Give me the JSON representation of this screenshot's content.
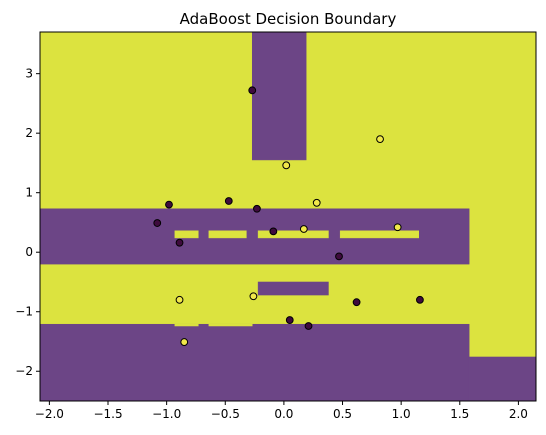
{
  "chart_data": {
    "type": "scatter",
    "title": "AdaBoost Decision Boundary",
    "xlabel": "",
    "ylabel": "",
    "xlim": [
      -2.08,
      2.15
    ],
    "ylim": [
      -2.5,
      3.7
    ],
    "x_ticks": [
      -2.0,
      -1.5,
      -1.0,
      -0.5,
      0.0,
      0.5,
      1.0,
      1.5,
      2.0
    ],
    "x_tick_labels": [
      "−2.0",
      "−1.5",
      "−1.0",
      "−0.5",
      "0.0",
      "0.5",
      "1.0",
      "1.5",
      "2.0"
    ],
    "y_ticks": [
      -2,
      -1,
      0,
      1,
      2,
      3
    ],
    "y_tick_labels": [
      "−2",
      "−1",
      "0",
      "1",
      "2",
      "3"
    ],
    "colors": {
      "class0": "#6c4586",
      "class1": "#dce33f",
      "class0_point": "#3e0b3d",
      "class1_point": "#f1e84a",
      "edge": "#000000"
    },
    "background_class": 1,
    "class0_regions": [
      {
        "x": [
          -0.27,
          0.19
        ],
        "y": [
          1.55,
          3.7
        ]
      },
      {
        "x": [
          -2.08,
          1.58
        ],
        "y": [
          -0.2,
          0.73
        ]
      },
      {
        "x": [
          -0.22,
          0.38
        ],
        "y": [
          -0.72,
          -0.5
        ]
      },
      {
        "x": [
          -2.08,
          1.58
        ],
        "y": [
          -2.5,
          -1.21
        ]
      },
      {
        "x": [
          1.58,
          2.15
        ],
        "y": [
          -2.5,
          -1.76
        ]
      }
    ],
    "class1_regions": [
      {
        "x": [
          -0.93,
          -0.73
        ],
        "y": [
          0.24,
          0.36
        ]
      },
      {
        "x": [
          -0.64,
          -0.32
        ],
        "y": [
          0.24,
          0.36
        ]
      },
      {
        "x": [
          -0.22,
          0.38
        ],
        "y": [
          0.24,
          0.36
        ]
      },
      {
        "x": [
          0.48,
          1.15
        ],
        "y": [
          0.24,
          0.36
        ]
      },
      {
        "x": [
          -0.93,
          -0.73
        ],
        "y": [
          -1.24,
          -1.21
        ]
      },
      {
        "x": [
          -0.64,
          -0.27
        ],
        "y": [
          -1.24,
          -1.21
        ]
      }
    ],
    "points": [
      {
        "x": -0.27,
        "y": 2.72,
        "label": 0
      },
      {
        "x": 0.82,
        "y": 1.9,
        "label": 1
      },
      {
        "x": 0.02,
        "y": 1.46,
        "label": 1
      },
      {
        "x": -0.47,
        "y": 0.86,
        "label": 0
      },
      {
        "x": -0.98,
        "y": 0.8,
        "label": 0
      },
      {
        "x": 0.28,
        "y": 0.83,
        "label": 1
      },
      {
        "x": -0.23,
        "y": 0.73,
        "label": 0
      },
      {
        "x": -1.08,
        "y": 0.49,
        "label": 0
      },
      {
        "x": 0.97,
        "y": 0.42,
        "label": 1
      },
      {
        "x": 0.17,
        "y": 0.39,
        "label": 1
      },
      {
        "x": -0.09,
        "y": 0.35,
        "label": 0
      },
      {
        "x": -0.89,
        "y": 0.16,
        "label": 0
      },
      {
        "x": 0.47,
        "y": -0.07,
        "label": 0
      },
      {
        "x": -0.26,
        "y": -0.74,
        "label": 1
      },
      {
        "x": -0.89,
        "y": -0.8,
        "label": 1
      },
      {
        "x": 1.16,
        "y": -0.8,
        "label": 0
      },
      {
        "x": 0.62,
        "y": -0.84,
        "label": 0
      },
      {
        "x": 0.05,
        "y": -1.14,
        "label": 0
      },
      {
        "x": 0.21,
        "y": -1.24,
        "label": 0
      },
      {
        "x": -0.85,
        "y": -1.51,
        "label": 1
      }
    ]
  }
}
